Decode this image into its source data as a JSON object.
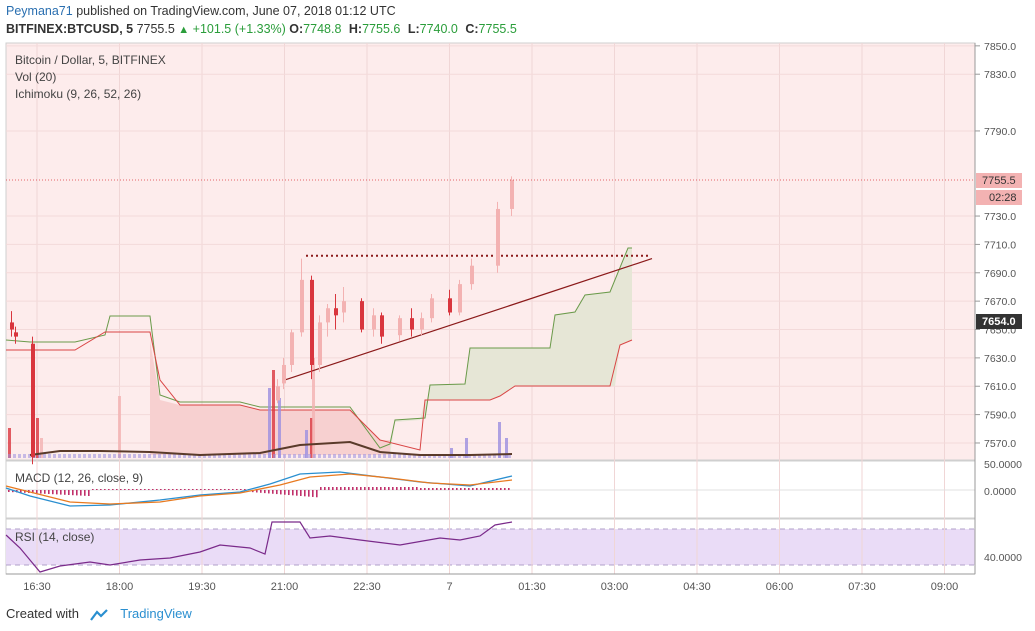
{
  "header": {
    "author": "Peymana71",
    "published_text": "published on TradingView.com, June 07, 2018 01:12 UTC",
    "symbol": "BITFINEX:BTCUSD, 5",
    "last": "7755.5",
    "up_arrow": "▲",
    "change": "+101.5 (+1.33%)",
    "o_label": "O:",
    "o": "7748.8",
    "h_label": "H:",
    "h": "7755.6",
    "l_label": "L:",
    "l": "7740.0",
    "c_label": "C:",
    "c": "7755.5"
  },
  "legend": {
    "series": "Bitcoin / Dollar, 5, BITFINEX",
    "vol": "Vol (20)",
    "ichimoku": "Ichimoku (9, 26, 52, 26)",
    "macd": "MACD (12, 26, close, 9)",
    "rsi": "RSI (14, close)"
  },
  "footer": {
    "created_with": "Created with",
    "brand": "TradingView"
  },
  "colors": {
    "bg": "#ffffff",
    "chart_bg": "#fdecec",
    "up": "#f3b2b2",
    "down": "#d9363e",
    "cloud_bull": "#e6e6d6",
    "cloud_bear": "#f7d0d0",
    "span_a": "#6a9a4a",
    "span_b": "#d94545",
    "volume": "#9b8fe0",
    "vol_ma": "#5a3a2a",
    "trend": "#8b1a1a",
    "rsi_line": "#7a2a8a",
    "rsi_band": "#eadcf7",
    "macd_line": "#2a8fd0",
    "signal_line": "#e87a20",
    "hist": "#c0306a"
  },
  "chart_data": {
    "type": "candlestick",
    "title": "Bitcoin / Dollar, 5, BITFINEX",
    "x_ticks": [
      "16:30",
      "18:00",
      "19:30",
      "21:00",
      "22:30",
      "7",
      "01:30",
      "03:00",
      "04:30",
      "06:00",
      "07:30",
      "09:00"
    ],
    "price_ticks": [
      "7850.0",
      "7830.0",
      "7790.0",
      "7730.0",
      "7710.0",
      "7690.0",
      "7670.0",
      "7650.0",
      "7630.0",
      "7610.0",
      "7590.0",
      "7570.0"
    ],
    "ylim": [
      7558,
      7852
    ],
    "last_price_label": "7755.5",
    "countdown_label": "02:28",
    "level_label": "7654.0",
    "candles": [
      [
        7655,
        7663,
        7645,
        7650
      ],
      [
        7648,
        7652,
        7640,
        7645
      ],
      [
        7640,
        7645,
        7555,
        7560
      ],
      [
        7600,
        7615,
        7598,
        7610
      ],
      [
        7612,
        7630,
        7608,
        7625
      ],
      [
        7625,
        7650,
        7620,
        7648
      ],
      [
        7648,
        7700,
        7645,
        7685
      ],
      [
        7685,
        7688,
        7615,
        7625
      ],
      [
        7625,
        7660,
        7620,
        7655
      ],
      [
        7655,
        7668,
        7645,
        7665
      ],
      [
        7665,
        7675,
        7650,
        7660
      ],
      [
        7662,
        7680,
        7655,
        7670
      ],
      [
        7670,
        7672,
        7648,
        7650
      ],
      [
        7650,
        7665,
        7645,
        7660
      ],
      [
        7660,
        7662,
        7640,
        7645
      ],
      [
        7646,
        7660,
        7642,
        7658
      ],
      [
        7658,
        7665,
        7645,
        7650
      ],
      [
        7650,
        7662,
        7646,
        7658
      ],
      [
        7658,
        7675,
        7655,
        7672
      ],
      [
        7672,
        7678,
        7660,
        7662
      ],
      [
        7662,
        7685,
        7660,
        7682
      ],
      [
        7682,
        7700,
        7678,
        7695
      ],
      [
        7695,
        7740,
        7690,
        7735
      ],
      [
        7735,
        7758,
        7730,
        7755.5
      ]
    ],
    "resistance_level": 7702,
    "trendline": [
      {
        "x": "21:00",
        "y": 7614
      },
      {
        "x": "03:30",
        "y": 7700
      }
    ],
    "volume_ma": "Vol (20)",
    "macd_ticks": [
      "50.0000",
      "0.0000"
    ],
    "rsi_ticks": [
      "40.0000"
    ]
  }
}
